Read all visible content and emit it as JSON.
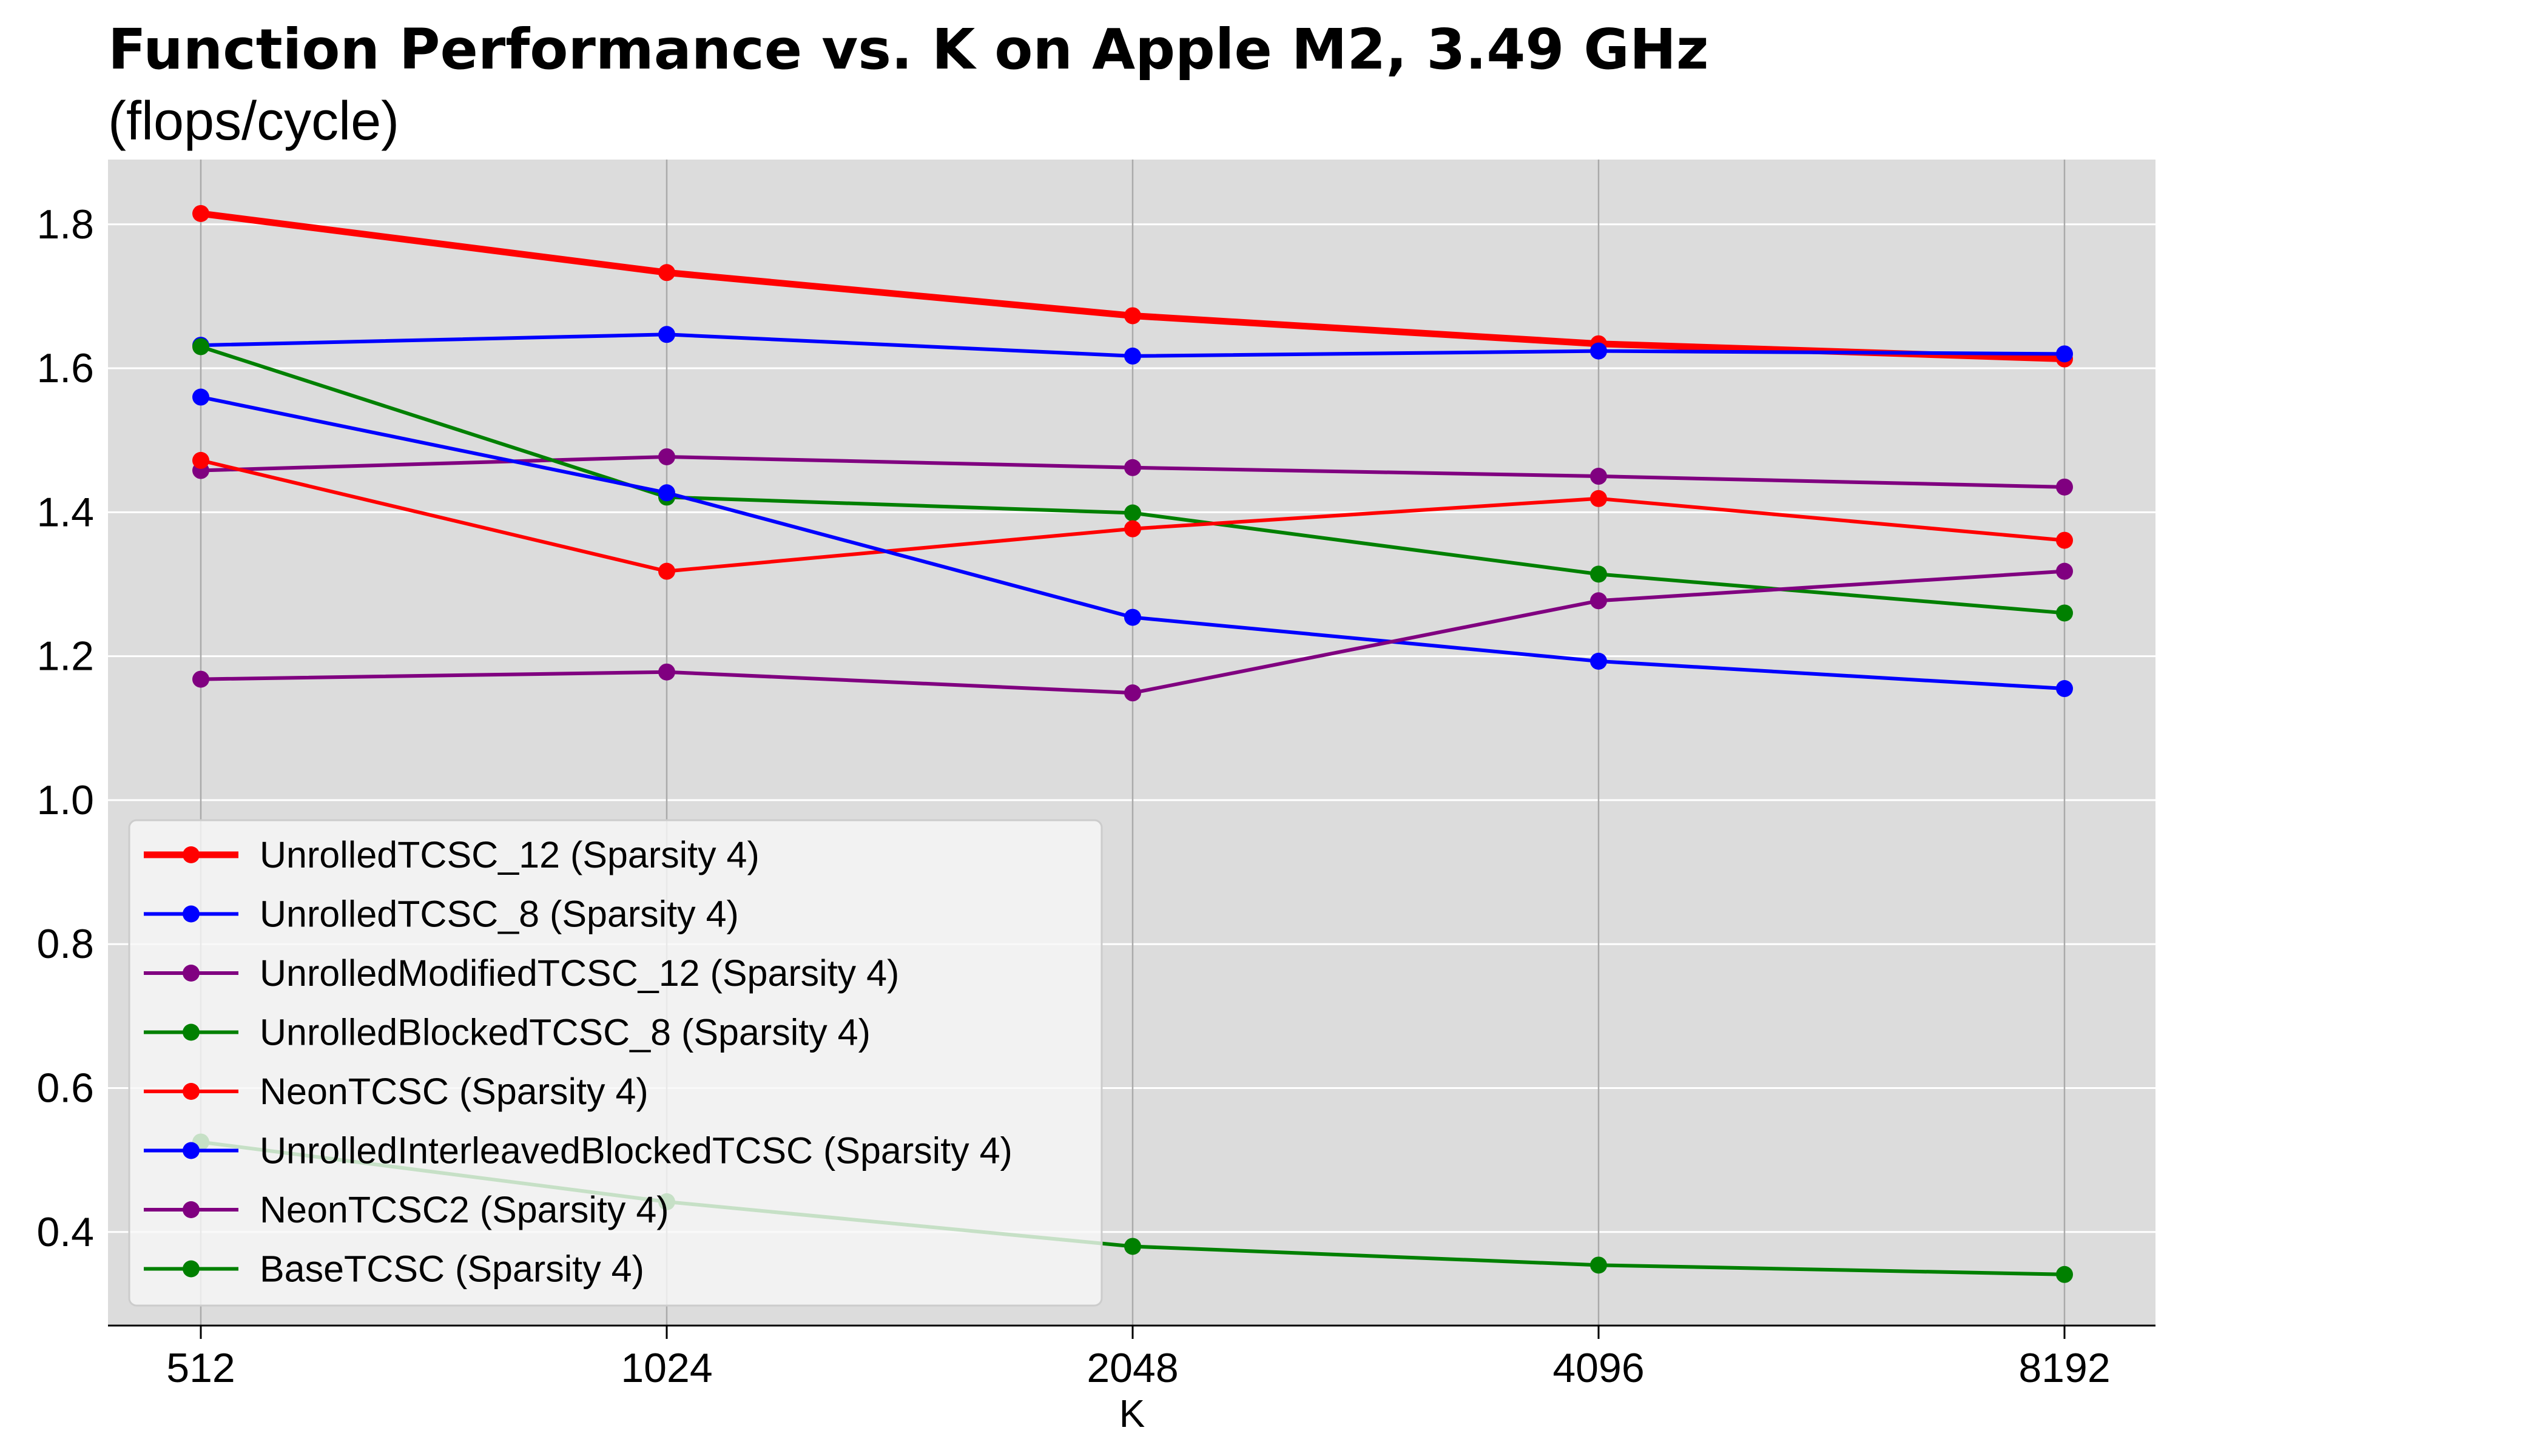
{
  "chart_data": {
    "type": "line",
    "title": "Function Performance vs.  K on Apple M2,  3.49 GHz",
    "subtitle": "(flops/cycle)",
    "xlabel": "K",
    "ylabel": "",
    "x_scale": "log2",
    "x": [
      512,
      1024,
      2048,
      4096,
      8192
    ],
    "x_tick_labels": [
      "512",
      "1024",
      "2048",
      "4096",
      "8192"
    ],
    "ylim": [
      0.27,
      1.89
    ],
    "y_ticks": [
      0.4,
      0.6,
      0.8,
      1.0,
      1.2,
      1.4,
      1.6,
      1.8
    ],
    "y_tick_labels": [
      "0.4",
      "0.6",
      "0.8",
      "1.0",
      "1.2",
      "1.4",
      "1.6",
      "1.8"
    ],
    "grid": "on",
    "legend_position": "lower-left",
    "background_color": "#dcdcdc",
    "series": [
      {
        "name": "UnrolledTCSC_12 (Sparsity 4)",
        "color": "#ff0000",
        "bold": true,
        "values": [
          1.815,
          1.733,
          1.673,
          1.634,
          1.613
        ]
      },
      {
        "name": "UnrolledTCSC_8 (Sparsity 4)",
        "color": "#0000ff",
        "bold": false,
        "values": [
          1.632,
          1.647,
          1.617,
          1.624,
          1.62
        ]
      },
      {
        "name": "UnrolledModifiedTCSC_12 (Sparsity 4)",
        "color": "#800080",
        "bold": false,
        "values": [
          1.458,
          1.477,
          1.462,
          1.45,
          1.435
        ]
      },
      {
        "name": "UnrolledBlockedTCSC_8 (Sparsity 4)",
        "color": "#008000",
        "bold": false,
        "values": [
          1.63,
          1.421,
          1.399,
          1.314,
          1.26
        ]
      },
      {
        "name": "NeonTCSC (Sparsity 4)",
        "color": "#ff0000",
        "bold": false,
        "values": [
          1.472,
          1.318,
          1.377,
          1.419,
          1.361
        ]
      },
      {
        "name": "UnrolledInterleavedBlockedTCSC (Sparsity 4)",
        "color": "#0000ff",
        "bold": false,
        "values": [
          1.56,
          1.427,
          1.254,
          1.193,
          1.155
        ]
      },
      {
        "name": "NeonTCSC2 (Sparsity 4)",
        "color": "#800080",
        "bold": false,
        "values": [
          1.168,
          1.178,
          1.149,
          1.277,
          1.318
        ]
      },
      {
        "name": "BaseTCSC (Sparsity 4)",
        "color": "#008000",
        "bold": false,
        "values": [
          0.525,
          0.442,
          0.38,
          0.354,
          0.341
        ]
      }
    ]
  }
}
